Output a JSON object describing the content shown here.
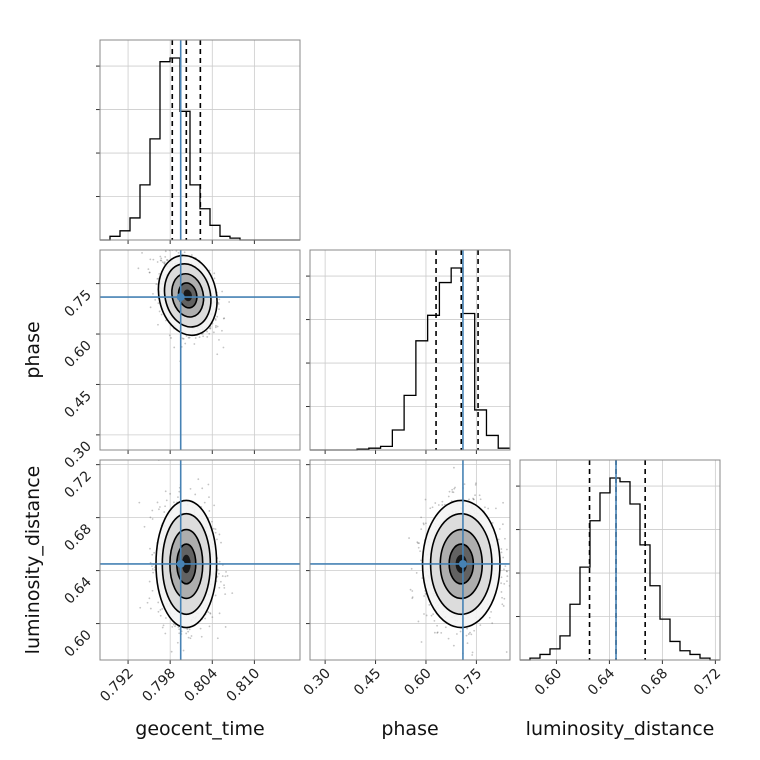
{
  "chart_data": {
    "type": "corner",
    "parameters": [
      "geocent_time",
      "phase",
      "luminosity_distance"
    ],
    "injection": {
      "geocent_time": 0.7995,
      "phase": 0.71,
      "luminosity_distance": 0.645
    },
    "ranges": {
      "geocent_time": [
        0.788,
        0.8165
      ],
      "phase": [
        0.255,
        0.85
      ],
      "luminosity_distance": [
        0.5725,
        0.7235
      ]
    },
    "ticks": {
      "geocent_time": [
        "0.792",
        "0.798",
        "0.804",
        "0.810"
      ],
      "phase": [
        "0.30",
        "0.45",
        "0.60",
        "0.75"
      ],
      "luminosity_distance": [
        "0.60",
        "0.64",
        "0.68",
        "0.72"
      ]
    },
    "quantiles": {
      "geocent_time": [
        0.7983,
        0.8003,
        0.8023
      ],
      "phase": [
        0.63,
        0.705,
        0.755
      ],
      "luminosity_distance": [
        0.625,
        0.645,
        0.667
      ]
    },
    "histograms": {
      "geocent_time": [
        0,
        0.02,
        0.05,
        0.12,
        0.3,
        0.55,
        0.97,
        0.99,
        0.7,
        0.3,
        0.17,
        0.08,
        0.02,
        0.01,
        0,
        0,
        0,
        0,
        0,
        0
      ],
      "phase": [
        0,
        0,
        0,
        0,
        0.005,
        0.01,
        0.02,
        0.11,
        0.3,
        0.6,
        0.74,
        0.92,
        1.0,
        0.75,
        0.22,
        0.08,
        0.01
      ],
      "luminosity_distance": [
        0,
        0.01,
        0.03,
        0.06,
        0.13,
        0.3,
        0.5,
        0.75,
        0.9,
        0.98,
        0.96,
        0.84,
        0.62,
        0.4,
        0.22,
        0.1,
        0.05,
        0.03,
        0.01,
        0
      ]
    },
    "covariance": {
      "geocent_time__phase": {
        "mx": 0.8005,
        "my": 0.715,
        "sx": 0.0017,
        "sy": 0.05,
        "rho": -0.35
      },
      "geocent_time__luminosity_distance": {
        "mx": 0.8003,
        "my": 0.645,
        "sx": 0.0018,
        "sy": 0.02,
        "rho": 0.0
      },
      "phase__luminosity_distance": {
        "mx": 0.705,
        "my": 0.645,
        "sx": 0.048,
        "sy": 0.02,
        "rho": 0.0
      }
    },
    "grid": true,
    "colors": {
      "injection": "#4682b4",
      "histogram": "#000000",
      "points": "#555555",
      "frame": "#888888"
    }
  }
}
